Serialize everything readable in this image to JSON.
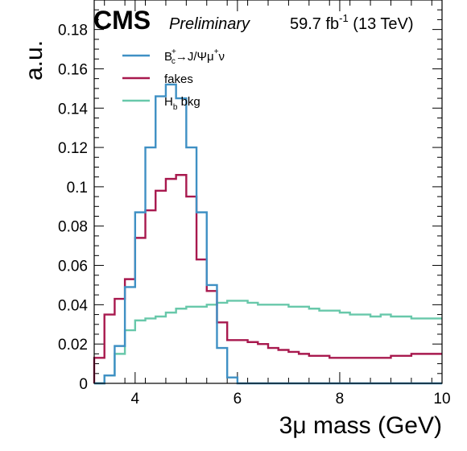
{
  "header": {
    "experiment": "CMS",
    "status": "Preliminary",
    "lumi_value": "59.7 fb",
    "lumi_exp": "-1",
    "energy": " (13 TeV)"
  },
  "legend": {
    "bc": {
      "base": "B",
      "sup": "+",
      "sub": "c",
      "arrow_text": "→J/Ψμ",
      "mu_sup": "+",
      "tail": "ν"
    },
    "fakes": "fakes",
    "hb": {
      "base": "H",
      "sub": "b",
      "tail": " bkg"
    }
  },
  "chart_data": {
    "type": "histogram",
    "xlabel": "3μ mass (GeV)",
    "ylabel": "a.u.",
    "xlim": [
      3.2,
      10
    ],
    "ylim": [
      0,
      0.195
    ],
    "x_ticks": [
      4,
      6,
      8,
      10
    ],
    "y_ticks": [
      0,
      0.02,
      0.04,
      0.06,
      0.08,
      0.1,
      0.12,
      0.14,
      0.16,
      0.18
    ],
    "y_tick_labels": [
      "0",
      "0.02",
      "0.04",
      "0.06",
      "0.08",
      "0.1",
      "0.12",
      "0.14",
      "0.16",
      "0.18"
    ],
    "bin_edges": [
      3.2,
      3.4,
      3.6,
      3.8,
      4.0,
      4.2,
      4.4,
      4.6,
      4.8,
      5.0,
      5.2,
      5.4,
      5.6,
      5.8,
      6.0,
      6.2,
      6.4,
      6.6,
      6.8,
      7.0,
      7.2,
      7.4,
      7.6,
      7.8,
      8.0,
      8.2,
      8.4,
      8.6,
      8.8,
      9.0,
      9.2,
      9.4,
      9.6,
      9.8,
      10.0
    ],
    "series": [
      {
        "name": "Bc+ → J/Ψμ+ν",
        "color": "#3f90c4",
        "values": [
          0.0,
          0.004,
          0.019,
          0.049,
          0.087,
          0.12,
          0.146,
          0.152,
          0.145,
          0.12,
          0.087,
          0.05,
          0.018,
          0.003,
          0.0,
          0.0,
          0.0,
          0.0,
          0.0,
          0.0,
          0.0,
          0.0,
          0.0,
          0.0,
          0.0,
          0.0,
          0.0,
          0.0,
          0.0,
          0.0,
          0.0,
          0.0,
          0.0,
          0.0
        ]
      },
      {
        "name": "fakes",
        "color": "#a8194e",
        "values": [
          0.013,
          0.035,
          0.043,
          0.053,
          0.074,
          0.088,
          0.098,
          0.104,
          0.106,
          0.095,
          0.063,
          0.047,
          0.031,
          0.022,
          0.022,
          0.021,
          0.02,
          0.018,
          0.017,
          0.016,
          0.015,
          0.014,
          0.014,
          0.013,
          0.013,
          0.013,
          0.013,
          0.013,
          0.013,
          0.014,
          0.014,
          0.015,
          0.015,
          0.015
        ]
      },
      {
        "name": "Hb bkg",
        "color": "#68c8aa",
        "values": [
          0.0,
          0.004,
          0.015,
          0.027,
          0.032,
          0.033,
          0.034,
          0.036,
          0.038,
          0.039,
          0.039,
          0.04,
          0.041,
          0.042,
          0.042,
          0.041,
          0.04,
          0.04,
          0.04,
          0.039,
          0.039,
          0.038,
          0.037,
          0.037,
          0.036,
          0.035,
          0.035,
          0.034,
          0.035,
          0.034,
          0.034,
          0.033,
          0.033,
          0.033
        ]
      }
    ]
  }
}
